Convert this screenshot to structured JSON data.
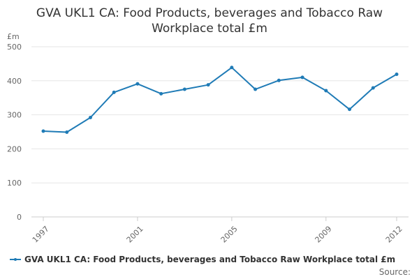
{
  "chart_data": {
    "type": "line",
    "title_line1": "GVA UKL1 CA: Food Products, beverages and Tobacco Raw",
    "title_line2": "Workplace total £m",
    "ylabel": "£m",
    "ylim": [
      0,
      500
    ],
    "yticks": [
      0,
      100,
      200,
      300,
      400,
      500
    ],
    "x": [
      1997,
      1998,
      1999,
      2000,
      2001,
      2002,
      2003,
      2004,
      2005,
      2006,
      2007,
      2008,
      2009,
      2010,
      2011,
      2012
    ],
    "xtick_labels": [
      1997,
      2001,
      2005,
      2009,
      2012
    ],
    "grid": true,
    "legend_position": "bottom-left",
    "series": [
      {
        "name": "GVA UKL1 CA: Food Products, beverages and Tobacco Raw Workplace total £m",
        "color": "#1f7bb6",
        "values": [
          252,
          249,
          292,
          366,
          391,
          362,
          375,
          388,
          439,
          375,
          401,
          410,
          371,
          316,
          379,
          419
        ]
      }
    ],
    "source_label": "Source:"
  }
}
